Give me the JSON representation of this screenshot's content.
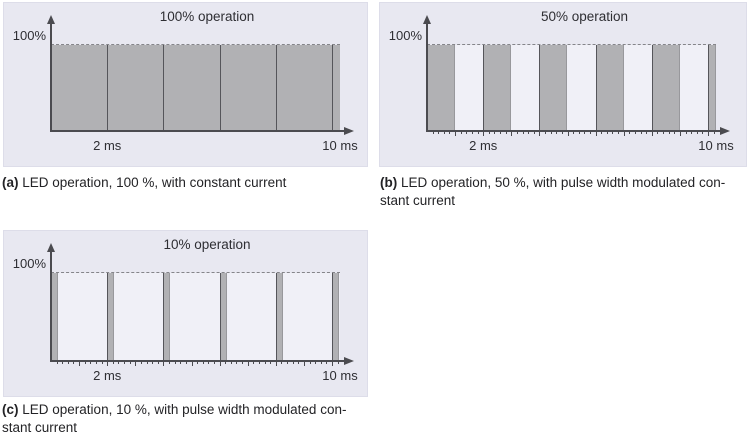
{
  "colors": {
    "panel_bg": "#e8e8f1",
    "plot_bg": "#f0f0f7",
    "pulse_fill": "#b1b1b4",
    "pulse_edge_dark": "#55555a",
    "pulse_edge_light": "#98989c",
    "dashed_line": "#85858a",
    "axis": "#4b4b50",
    "text": "#2e2e33"
  },
  "chart_data": [
    {
      "id": "a",
      "type": "area",
      "title": "100% operation",
      "y_axis_label": "100%",
      "duty_cycle_percent": 100,
      "period_ms": 2,
      "total_ms": 10,
      "y_level_percent": 100,
      "x_tick_labels": [
        {
          "at_ms": 2,
          "label": "2 ms"
        },
        {
          "at_ms": 10,
          "label": "10 ms"
        }
      ],
      "fine_ticks": false,
      "caption_tag": "(a)",
      "caption_lines": [
        "LED operation, 100 %, with constant current"
      ]
    },
    {
      "id": "b",
      "type": "area",
      "title": "50% operation",
      "y_axis_label": "100%",
      "duty_cycle_percent": 50,
      "period_ms": 2,
      "total_ms": 10,
      "y_level_percent": 100,
      "x_tick_labels": [
        {
          "at_ms": 2,
          "label": "2 ms"
        },
        {
          "at_ms": 10,
          "label": "10 ms"
        }
      ],
      "fine_ticks": true,
      "caption_tag": "(b)",
      "caption_lines": [
        "LED operation, 50 %, with pulse width modulated con-",
        "stant current"
      ]
    },
    {
      "id": "c",
      "type": "area",
      "title": "10% operation",
      "y_axis_label": "100%",
      "duty_cycle_percent": 10,
      "period_ms": 2,
      "total_ms": 10,
      "y_level_percent": 100,
      "x_tick_labels": [
        {
          "at_ms": 2,
          "label": "2 ms"
        },
        {
          "at_ms": 10,
          "label": "10 ms"
        }
      ],
      "fine_ticks": true,
      "caption_tag": "(c)",
      "caption_lines": [
        "LED operation, 10 %, with pulse width modulated con-",
        "stant current"
      ]
    }
  ]
}
